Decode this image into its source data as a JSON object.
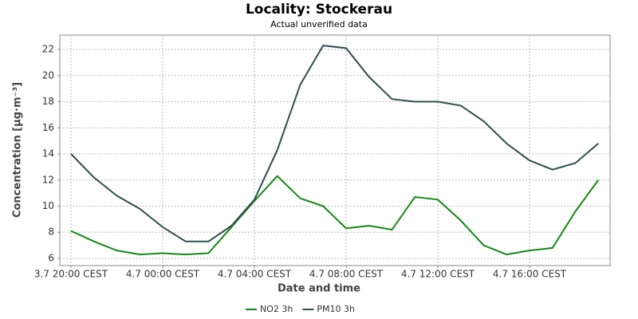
{
  "chart_data": {
    "type": "line",
    "title": "Locality: Stockerau",
    "subtitle": "Actual unverified data",
    "x_label": "Date and time",
    "y_label": "Concentration [µg·m⁻³]",
    "categories": [
      "3.7 20:00 CEST",
      null,
      null,
      null,
      "4.7 00:00 CEST",
      null,
      null,
      null,
      "4.7 04:00 CEST",
      null,
      null,
      null,
      "4.7 08:00 CEST",
      null,
      null,
      null,
      "4.7 12:00 CEST",
      null,
      null,
      null,
      "4.7 16:00 CEST",
      null,
      null,
      null
    ],
    "series": [
      {
        "name": "NO2 3h",
        "color": "#138a13",
        "values": [
          8.1,
          7.3,
          6.6,
          6.3,
          6.4,
          6.3,
          6.4,
          8.4,
          10.4,
          12.3,
          10.6,
          10.0,
          8.3,
          8.5,
          8.2,
          10.7,
          10.5,
          8.9,
          7.0,
          6.3,
          6.6,
          6.8,
          9.6,
          12.0
        ]
      },
      {
        "name": "PM10 3h",
        "color": "#2f4f4f",
        "values": [
          14.0,
          12.2,
          10.8,
          9.8,
          8.4,
          7.3,
          7.3,
          8.5,
          10.5,
          14.3,
          19.3,
          22.3,
          22.1,
          19.9,
          18.2,
          18.0,
          18.0,
          17.7,
          16.5,
          14.8,
          13.5,
          12.8,
          13.3,
          14.8
        ]
      }
    ],
    "ylim": [
      5.45,
      23.1
    ],
    "yticks": [
      6,
      8,
      10,
      12,
      14,
      16,
      18,
      20,
      22
    ],
    "grid": true,
    "legend": "bottom"
  }
}
